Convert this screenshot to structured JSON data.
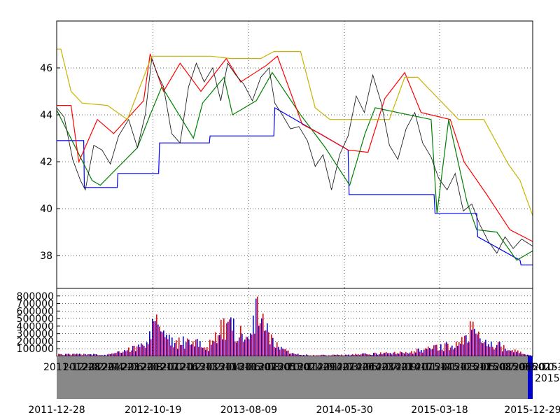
{
  "chart_data": [
    {
      "type": "line",
      "panel": "price",
      "title": "",
      "xlabel": "",
      "ylabel": "",
      "ylim": [
        36.6,
        48.0
      ],
      "yticks": [
        "38",
        "40",
        "42",
        "44",
        "46"
      ],
      "grid": true,
      "x_range": [
        "2011-12-28",
        "2015-12-29"
      ],
      "series": [
        {
          "color": "#0000ff",
          "x": [
            "2011-12-28",
            "2012-03-20",
            "2012-03-22",
            "2012-07-01",
            "2012-07-03",
            "2012-11-05",
            "2012-11-08",
            "2013-04-10",
            "2013-04-12",
            "2013-10-25",
            "2013-10-28",
            "2014-06-10",
            "2014-06-13",
            "2015-03-01",
            "2015-03-04",
            "2015-07-10",
            "2015-07-13",
            "2015-11-20",
            "2015-11-23",
            "2015-12-29"
          ],
          "values": [
            42.9,
            42.9,
            40.9,
            40.9,
            41.5,
            41.5,
            42.8,
            42.8,
            43.1,
            43.1,
            44.3,
            42.5,
            40.6,
            40.6,
            39.8,
            39.8,
            38.8,
            37.8,
            37.6,
            37.6
          ]
        },
        {
          "color": "#008000",
          "x": [
            "2011-12-28",
            "2012-04-15",
            "2012-05-10",
            "2012-09-01",
            "2012-10-10",
            "2012-11-15",
            "2013-02-20",
            "2013-03-20",
            "2013-05-25",
            "2013-06-20",
            "2013-09-01",
            "2013-10-20",
            "2014-01-15",
            "2014-04-01",
            "2014-06-15",
            "2014-08-01",
            "2014-09-01",
            "2015-02-20",
            "2015-03-10",
            "2015-04-15",
            "2015-06-10",
            "2015-07-10",
            "2015-09-10",
            "2015-11-10",
            "2015-12-29"
          ],
          "values": [
            44.2,
            41.2,
            41.0,
            42.6,
            44.0,
            45.2,
            43.0,
            44.5,
            45.6,
            44.0,
            44.6,
            45.8,
            44.0,
            42.6,
            41.0,
            43.2,
            44.3,
            43.8,
            39.8,
            43.8,
            40.3,
            39.1,
            39.0,
            37.8,
            38.2
          ]
        },
        {
          "color": "#ff0000",
          "x": [
            "2011-12-28",
            "2012-02-10",
            "2012-03-05",
            "2012-05-01",
            "2012-06-20",
            "2012-09-20",
            "2012-10-10",
            "2012-11-20",
            "2013-01-10",
            "2013-03-15",
            "2013-06-01",
            "2013-07-15",
            "2013-10-01",
            "2013-11-05",
            "2014-01-20",
            "2014-03-15",
            "2014-06-10",
            "2014-08-10",
            "2014-10-01",
            "2014-12-01",
            "2015-01-20",
            "2015-04-20",
            "2015-06-01",
            "2015-08-10",
            "2015-10-20",
            "2015-12-29"
          ],
          "values": [
            44.4,
            44.4,
            42.0,
            43.8,
            43.2,
            44.6,
            46.6,
            45.0,
            46.2,
            45.0,
            46.4,
            45.4,
            46.1,
            46.5,
            43.6,
            43.2,
            42.5,
            42.4,
            44.7,
            45.8,
            44.1,
            43.8,
            42.0,
            40.6,
            39.1,
            38.6
          ]
        },
        {
          "color": "#c8b400",
          "x": [
            "2011-12-28",
            "2012-01-10",
            "2012-02-10",
            "2012-03-15",
            "2012-06-01",
            "2012-08-01",
            "2012-10-15",
            "2013-01-01",
            "2013-04-15",
            "2013-06-15",
            "2013-09-15",
            "2013-10-25",
            "2014-01-15",
            "2014-03-01",
            "2014-04-15",
            "2014-06-30",
            "2014-10-15",
            "2014-12-01",
            "2015-01-10",
            "2015-05-15",
            "2015-08-01",
            "2015-10-15",
            "2015-11-20",
            "2015-12-29"
          ],
          "values": [
            46.8,
            46.8,
            45.0,
            44.5,
            44.4,
            43.8,
            46.5,
            46.5,
            46.5,
            46.4,
            46.4,
            46.7,
            46.7,
            44.3,
            43.8,
            43.8,
            43.8,
            45.6,
            45.6,
            43.8,
            43.8,
            41.9,
            41.2,
            39.7
          ]
        },
        {
          "color": "#222222",
          "x": [
            "2011-12-28",
            "2012-01-20",
            "2012-02-15",
            "2012-03-10",
            "2012-03-25",
            "2012-04-20",
            "2012-05-15",
            "2012-06-10",
            "2012-07-05",
            "2012-08-05",
            "2012-09-01",
            "2012-09-25",
            "2012-10-15",
            "2012-10-30",
            "2012-11-20",
            "2012-12-15",
            "2013-01-10",
            "2013-02-05",
            "2013-03-01",
            "2013-03-25",
            "2013-04-20",
            "2013-05-15",
            "2013-06-05",
            "2013-06-30",
            "2013-07-25",
            "2013-08-20",
            "2013-09-15",
            "2013-10-10",
            "2013-10-28",
            "2013-11-20",
            "2013-12-15",
            "2014-01-10",
            "2014-02-05",
            "2014-03-01",
            "2014-03-25",
            "2014-04-20",
            "2014-05-15",
            "2014-06-10",
            "2014-07-05",
            "2014-07-30",
            "2014-08-25",
            "2014-09-20",
            "2014-10-15",
            "2014-11-10",
            "2014-12-05",
            "2015-01-01",
            "2015-01-25",
            "2015-02-20",
            "2015-03-15",
            "2015-04-10",
            "2015-05-05",
            "2015-05-30",
            "2015-06-25",
            "2015-07-20",
            "2015-08-15",
            "2015-09-10",
            "2015-10-05",
            "2015-10-30",
            "2015-11-25",
            "2015-12-29"
          ],
          "values": [
            44.3,
            43.9,
            42.1,
            41.2,
            40.8,
            42.7,
            42.5,
            41.9,
            43.1,
            43.8,
            42.6,
            44.0,
            46.4,
            45.8,
            45.2,
            43.2,
            42.8,
            45.2,
            46.2,
            45.4,
            46.0,
            44.6,
            46.2,
            45.7,
            45.3,
            44.6,
            45.6,
            46.0,
            44.5,
            44.0,
            43.4,
            43.5,
            42.9,
            41.8,
            42.3,
            40.8,
            42.3,
            43.1,
            44.8,
            44.1,
            45.7,
            44.5,
            42.7,
            42.1,
            43.4,
            44.1,
            42.8,
            42.2,
            41.3,
            40.8,
            41.5,
            39.9,
            40.2,
            39.3,
            38.6,
            38.1,
            38.8,
            38.3,
            38.7,
            38.4
          ]
        }
      ]
    },
    {
      "type": "bar",
      "panel": "volume",
      "title": "",
      "xlabel": "",
      "ylabel": "",
      "ylim": [
        0,
        900000
      ],
      "yticks": [
        "100000",
        "200000",
        "300000",
        "400000",
        "500000",
        "600000",
        "700000",
        "800000"
      ],
      "grid": true,
      "colors": [
        "#0000ff",
        "#ff0000"
      ],
      "peaks_x": [
        "2011-12-28",
        "2012-06-01",
        "2012-09-15",
        "2012-10-05",
        "2012-10-25",
        "2012-11-25",
        "2013-01-01",
        "2013-02-15",
        "2013-04-01",
        "2013-05-01",
        "2013-06-10",
        "2013-07-01",
        "2013-07-20",
        "2013-08-10",
        "2013-09-01",
        "2013-09-20",
        "2013-10-15",
        "2013-11-15",
        "2013-12-20",
        "2014-03-01",
        "2014-06-01",
        "2014-09-01",
        "2014-12-01",
        "2015-01-20",
        "2015-03-01",
        "2015-04-01",
        "2015-05-01",
        "2015-06-01",
        "2015-06-25",
        "2015-07-15",
        "2015-08-15",
        "2015-09-15",
        "2015-11-01",
        "2015-12-15"
      ],
      "peaks_values": [
        40000,
        30000,
        200000,
        350000,
        700000,
        400000,
        250000,
        300000,
        150000,
        450000,
        600000,
        500000,
        420000,
        300000,
        900000,
        600000,
        300000,
        150000,
        50000,
        20000,
        30000,
        50000,
        70000,
        120000,
        150000,
        200000,
        180000,
        300000,
        550000,
        350000,
        250000,
        200000,
        100000,
        20000
      ]
    }
  ],
  "date_ticks": [
    "2011-12-28",
    "2012-10-19",
    "2013-08-09",
    "2014-05-30",
    "2015-03-18",
    "2015-12-29"
  ],
  "slider": {
    "tick_labels": [
      "2011-12-28",
      "2012-02-24",
      "2012-04-23",
      "2012-06-20",
      "2012-08-17",
      "2012-10-16",
      "2012-12-13",
      "2013-02-11",
      "2013-04-10",
      "2013-06-07",
      "2013-08-05",
      "2013-10-02",
      "2013-11-29",
      "2014-01-27",
      "2014-03-26",
      "2014-05-23",
      "2014-07-21",
      "2014-09-17",
      "2014-11-14",
      "2015-01-12",
      "2015-03-11",
      "2015-05-08",
      "2015-07-06",
      "2015-09-02",
      "2015-10-30",
      "2015-12-29"
    ],
    "handle_label": "2015-12-29",
    "handle_color": "#0000cc",
    "track_color": "#888888"
  }
}
